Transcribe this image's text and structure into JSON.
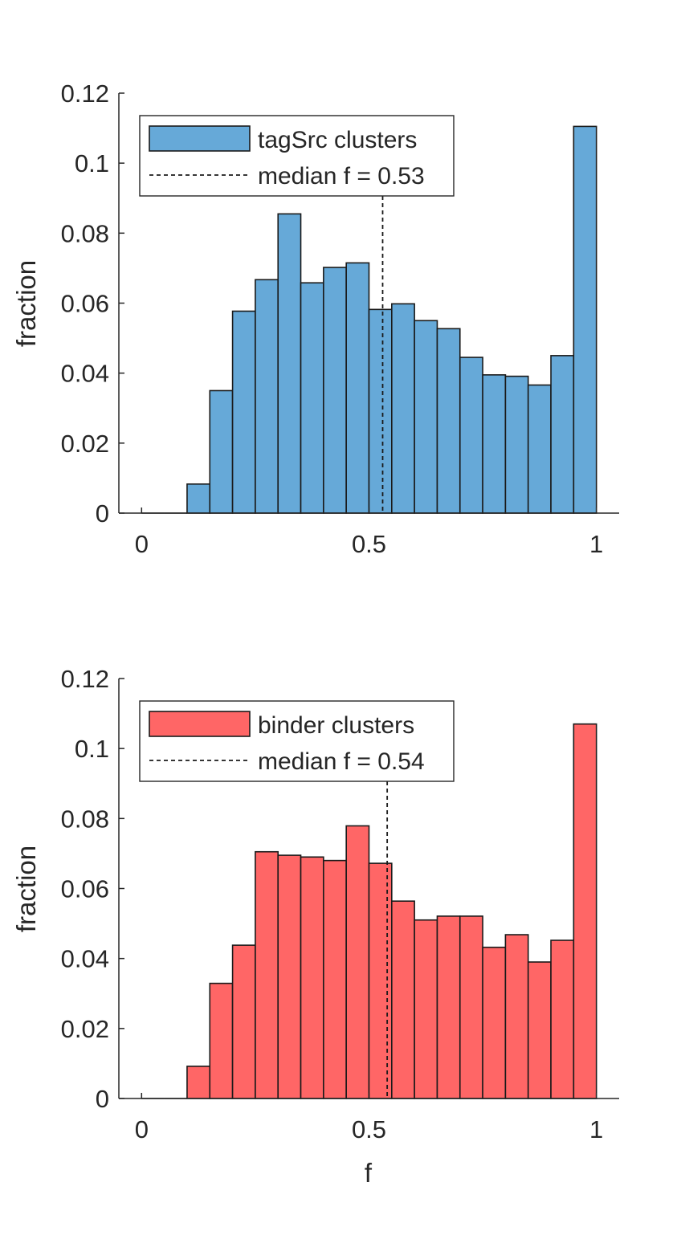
{
  "chart_data": [
    {
      "type": "bar",
      "bin_edges": [
        0,
        0.05,
        0.1,
        0.15,
        0.2,
        0.25,
        0.3,
        0.35,
        0.4,
        0.45,
        0.5,
        0.55,
        0.6,
        0.65,
        0.7,
        0.75,
        0.8,
        0.85,
        0.9,
        0.95,
        1.0
      ],
      "values": [
        0,
        0,
        0.0083,
        0.035,
        0.0577,
        0.0667,
        0.0855,
        0.0658,
        0.0702,
        0.0715,
        0.0582,
        0.0598,
        0.055,
        0.0527,
        0.0445,
        0.0395,
        0.0391,
        0.0366,
        0.045,
        0.1105
      ],
      "median": 0.53,
      "legend": [
        "tagSrc clusters",
        "median f = 0.53"
      ],
      "legend_position": "top-left",
      "ylabel": "fraction",
      "xlabel": "",
      "xlim": [
        -0.05,
        1.05
      ],
      "ylim": [
        0,
        0.12
      ],
      "xticks": [
        0,
        0.5,
        1
      ],
      "xtick_labels": [
        "0",
        "0.5",
        "1"
      ],
      "yticks": [
        0,
        0.02,
        0.04,
        0.06,
        0.08,
        0.1,
        0.12
      ],
      "ytick_labels": [
        "0",
        "0.02",
        "0.04",
        "0.06",
        "0.08",
        "0.1",
        "0.12"
      ],
      "color": "#66a9d8",
      "grid": false
    },
    {
      "type": "bar",
      "bin_edges": [
        0,
        0.05,
        0.1,
        0.15,
        0.2,
        0.25,
        0.3,
        0.35,
        0.4,
        0.45,
        0.5,
        0.55,
        0.6,
        0.65,
        0.7,
        0.75,
        0.8,
        0.85,
        0.9,
        0.95,
        1.0
      ],
      "values": [
        0,
        0,
        0.0092,
        0.0329,
        0.0438,
        0.0705,
        0.0695,
        0.069,
        0.068,
        0.0779,
        0.0672,
        0.0564,
        0.051,
        0.0521,
        0.0521,
        0.0432,
        0.0468,
        0.039,
        0.0452,
        0.107
      ],
      "median": 0.54,
      "legend": [
        "binder clusters",
        "median f = 0.54"
      ],
      "legend_position": "top-left",
      "ylabel": "fraction",
      "xlabel": "f",
      "xlim": [
        -0.05,
        1.05
      ],
      "ylim": [
        0,
        0.12
      ],
      "xticks": [
        0,
        0.5,
        1
      ],
      "xtick_labels": [
        "0",
        "0.5",
        "1"
      ],
      "yticks": [
        0,
        0.02,
        0.04,
        0.06,
        0.08,
        0.1,
        0.12
      ],
      "ytick_labels": [
        "0",
        "0.02",
        "0.04",
        "0.06",
        "0.08",
        "0.1",
        "0.12"
      ],
      "color": "#ff6666",
      "grid": false
    }
  ]
}
